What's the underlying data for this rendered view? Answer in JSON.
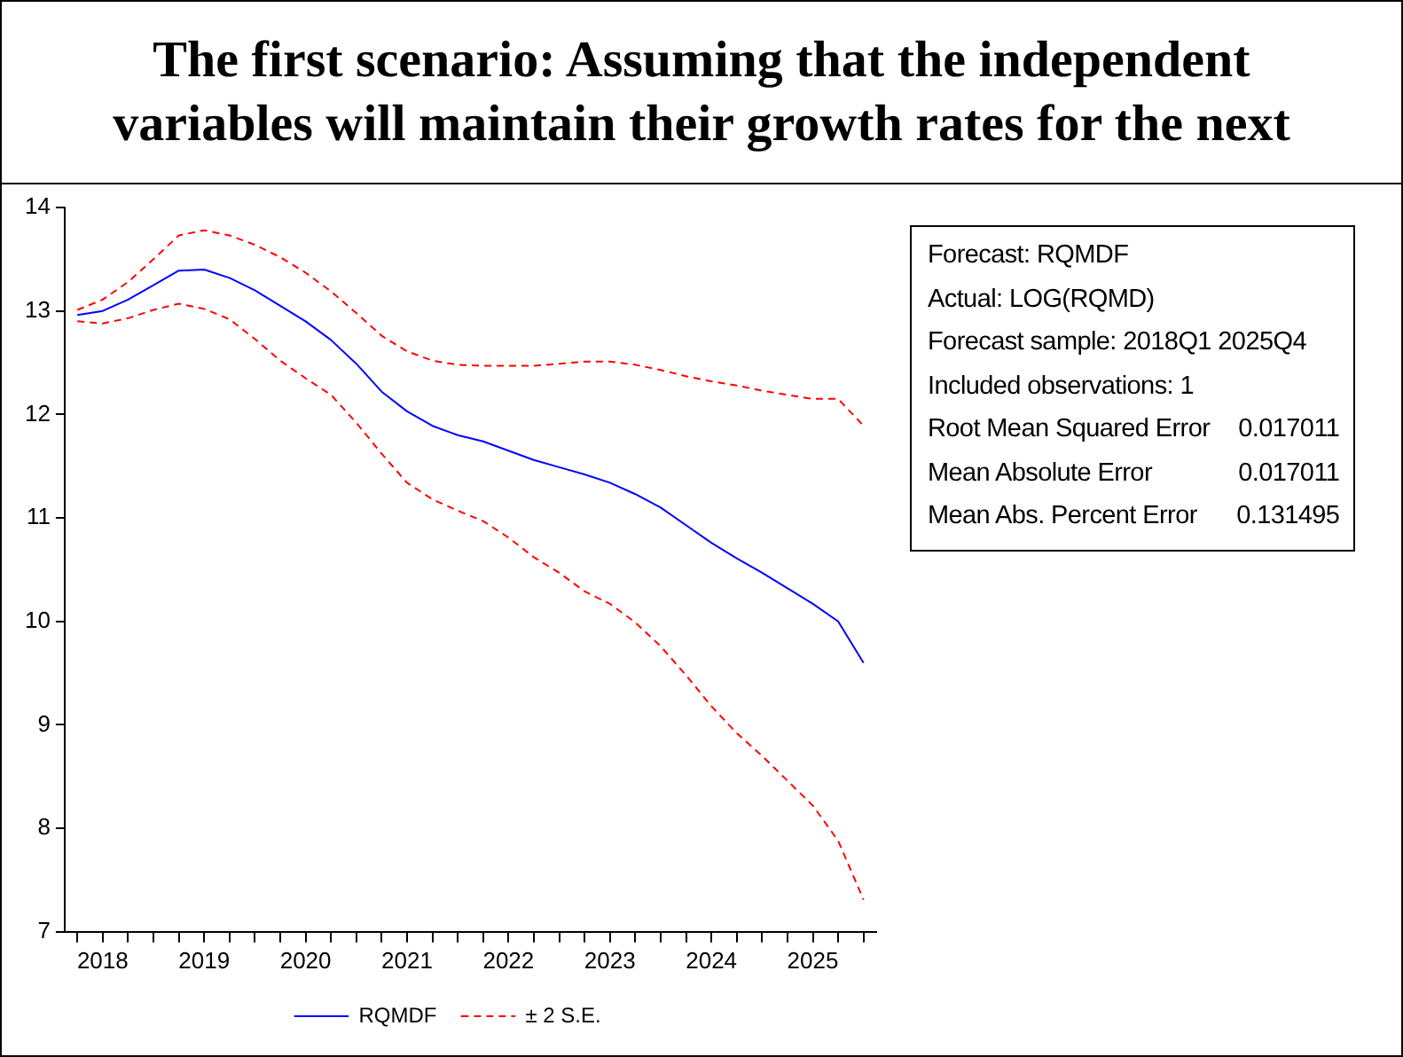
{
  "chart_data": {
    "type": "line",
    "title": "The first scenario: Assuming that the independent variables will maintain their growth rates for the next",
    "categories": [
      null,
      "2018",
      null,
      null,
      null,
      "2019",
      null,
      null,
      null,
      "2020",
      null,
      null,
      null,
      "2021",
      null,
      null,
      null,
      "2022",
      null,
      null,
      null,
      "2023",
      null,
      null,
      null,
      "2024",
      null,
      null,
      null,
      "2025",
      null,
      null
    ],
    "series": [
      {
        "name": "RQMDF",
        "color": "#0000ff",
        "line_style": "solid",
        "values": [
          12.96,
          13.0,
          13.11,
          13.25,
          13.39,
          13.4,
          13.32,
          13.2,
          13.05,
          12.9,
          12.72,
          12.49,
          12.22,
          12.03,
          11.89,
          11.8,
          11.74,
          11.65,
          11.56,
          11.49,
          11.42,
          11.34,
          11.23,
          11.1,
          10.93,
          10.76,
          10.61,
          10.47,
          10.32,
          10.17,
          10.0,
          9.6
        ]
      },
      {
        "name": "± 2 S.E.",
        "color": "#ff0000",
        "line_style": "dashed",
        "values": [
          13.01,
          13.11,
          13.28,
          13.5,
          13.73,
          13.78,
          13.73,
          13.64,
          13.52,
          13.37,
          13.19,
          12.98,
          12.76,
          12.61,
          12.52,
          12.48,
          12.47,
          12.47,
          12.47,
          12.49,
          12.51,
          12.51,
          12.48,
          12.43,
          12.37,
          12.32,
          12.28,
          12.23,
          12.19,
          12.15,
          12.15,
          11.89
        ]
      },
      {
        "color": "#ff0000",
        "line_style": "dashed",
        "values": [
          12.9,
          12.88,
          12.93,
          13.01,
          13.07,
          13.02,
          12.92,
          12.73,
          12.52,
          12.35,
          12.19,
          11.92,
          11.62,
          11.34,
          11.18,
          11.07,
          10.97,
          10.81,
          10.62,
          10.47,
          10.29,
          10.17,
          9.99,
          9.76,
          9.48,
          9.18,
          8.92,
          8.7,
          8.46,
          8.22,
          7.88,
          7.31
        ]
      }
    ],
    "ylim": [
      7,
      14
    ],
    "yticks": [
      7,
      8,
      9,
      10,
      11,
      12,
      13,
      14
    ],
    "grid": false,
    "legend": "bottom",
    "marker": "none",
    "annotations": [
      "Forecast: RQMDF",
      "Actual: LOG(RQMD)",
      "Forecast sample: 2018Q1 2025Q4",
      "Included observations: 1",
      "Root Mean Squared Error 0.017011",
      "Mean Absolute Error 0.017011",
      "Mean Abs. Percent Error 0.131495"
    ]
  }
}
